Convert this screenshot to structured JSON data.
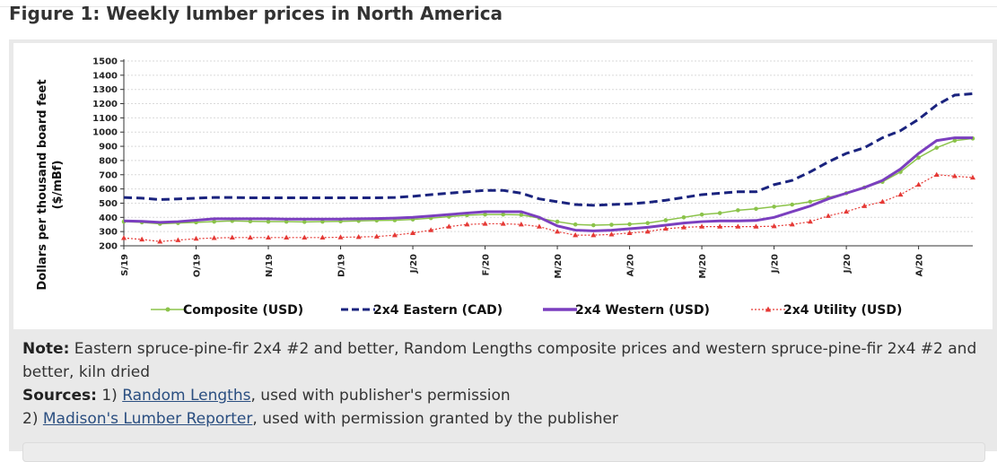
{
  "figure": {
    "title": "Figure 1: Weekly lumber prices in North America"
  },
  "note": {
    "note_label": "Note:",
    "note_text": "Eastern spruce-pine-fir 2x4 #2 and better, Random Lengths composite prices and western spruce-pine-fir 2x4 #2 and better, kiln dried",
    "sources_label": "Sources:",
    "source1_prefix": "1)",
    "source1_link": "Random Lengths",
    "source1_suffix": ", used with publisher's permission",
    "source2_prefix": "2)",
    "source2_link": "Madison's Lumber Reporter",
    "source2_suffix": ", used with permission granted by the publisher"
  },
  "colors": {
    "composite": "#8bc34a",
    "eastern": "#1a237e",
    "western": "#7b3fbf",
    "utility": "#e53935",
    "grid": "#d9d9d9",
    "axis": "#333333"
  },
  "chart_data": {
    "type": "line",
    "title": "",
    "xlabel": "",
    "ylabel": "Dollars per thousand board feet ($/mBf)",
    "ylim": [
      200,
      1500
    ],
    "yticks": [
      200,
      300,
      400,
      500,
      600,
      700,
      800,
      900,
      1000,
      1100,
      1200,
      1300,
      1400,
      1500
    ],
    "grid": true,
    "legend_position": "bottom",
    "x_ticks": [
      {
        "label": "S/19",
        "week": 0
      },
      {
        "label": "O/19",
        "week": 4
      },
      {
        "label": "N/19",
        "week": 8
      },
      {
        "label": "D/19",
        "week": 12
      },
      {
        "label": "J/20",
        "week": 16
      },
      {
        "label": "F/20",
        "week": 20
      },
      {
        "label": "M/20",
        "week": 24
      },
      {
        "label": "A/20",
        "week": 28
      },
      {
        "label": "M/20",
        "week": 32
      },
      {
        "label": "J/20",
        "week": 36
      },
      {
        "label": "J/20",
        "week": 40
      },
      {
        "label": "A/20",
        "week": 44
      }
    ],
    "weeks": [
      0,
      1,
      2,
      3,
      4,
      5,
      6,
      7,
      8,
      9,
      10,
      11,
      12,
      13,
      14,
      15,
      16,
      17,
      18,
      19,
      20,
      21,
      22,
      23,
      24,
      25,
      26,
      27,
      28,
      29,
      30,
      31,
      32,
      33,
      34,
      35,
      36,
      37,
      38,
      39,
      40,
      41,
      42,
      43,
      44,
      45,
      46,
      47
    ],
    "series": [
      {
        "name": "Composite (USD)",
        "color_key": "composite",
        "style": "solid-circle",
        "values": [
          370,
          365,
          355,
          360,
          365,
          370,
          375,
          372,
          370,
          370,
          368,
          370,
          372,
          375,
          378,
          380,
          385,
          395,
          405,
          415,
          420,
          420,
          418,
          395,
          370,
          350,
          345,
          348,
          352,
          360,
          380,
          400,
          420,
          430,
          450,
          460,
          475,
          490,
          510,
          540,
          570,
          610,
          650,
          720,
          820,
          890,
          940,
          955
        ]
      },
      {
        "name": "2x4 Eastern (CAD)",
        "color_key": "eastern",
        "style": "dash",
        "values": [
          540,
          535,
          525,
          530,
          535,
          540,
          540,
          538,
          538,
          538,
          538,
          538,
          538,
          538,
          538,
          540,
          548,
          560,
          570,
          580,
          590,
          590,
          570,
          530,
          510,
          490,
          485,
          490,
          495,
          505,
          520,
          540,
          560,
          570,
          580,
          580,
          630,
          660,
          720,
          790,
          850,
          890,
          960,
          1010,
          1090,
          1190,
          1260,
          1270
        ]
      },
      {
        "name": "2x4 Western (USD)",
        "color_key": "western",
        "style": "solid",
        "values": [
          375,
          372,
          365,
          370,
          380,
          390,
          390,
          390,
          390,
          388,
          388,
          388,
          388,
          390,
          392,
          395,
          400,
          410,
          420,
          430,
          440,
          440,
          440,
          400,
          340,
          310,
          305,
          310,
          320,
          330,
          345,
          360,
          370,
          375,
          375,
          378,
          400,
          440,
          480,
          530,
          570,
          610,
          660,
          740,
          850,
          940,
          960,
          960
        ]
      },
      {
        "name": "2x4 Utility (USD)",
        "color_key": "utility",
        "style": "dot-triangle",
        "values": [
          255,
          245,
          230,
          240,
          250,
          255,
          258,
          258,
          258,
          258,
          258,
          258,
          260,
          262,
          265,
          275,
          290,
          310,
          335,
          350,
          355,
          355,
          350,
          335,
          300,
          275,
          275,
          280,
          290,
          300,
          320,
          330,
          335,
          335,
          335,
          335,
          338,
          350,
          370,
          410,
          440,
          480,
          510,
          560,
          630,
          700,
          690,
          680
        ]
      }
    ]
  }
}
